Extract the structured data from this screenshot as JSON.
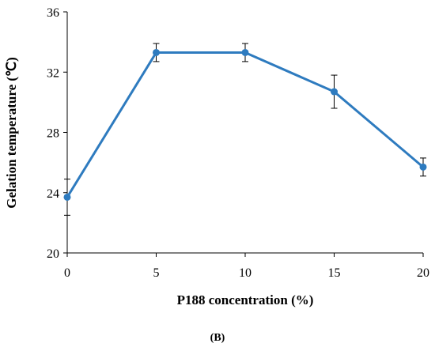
{
  "chart_data": {
    "type": "line",
    "xlabel": "P188 concentration (%)",
    "ylabel": "Gelation temperature (℃)",
    "panel_label": "(B)",
    "xlim": [
      0,
      20
    ],
    "ylim": [
      20,
      36
    ],
    "xticks": [
      0,
      5,
      10,
      15,
      20
    ],
    "yticks": [
      20,
      24,
      28,
      32,
      36
    ],
    "grid": false,
    "series": [
      {
        "color": "#2e7bbf",
        "points": [
          {
            "x": 0,
            "y": 23.7,
            "err": 1.2
          },
          {
            "x": 5,
            "y": 33.3,
            "err": 0.6
          },
          {
            "x": 10,
            "y": 33.3,
            "err": 0.6
          },
          {
            "x": 15,
            "y": 30.7,
            "err": 1.1
          },
          {
            "x": 20,
            "y": 25.7,
            "err": 0.6
          }
        ]
      }
    ]
  }
}
